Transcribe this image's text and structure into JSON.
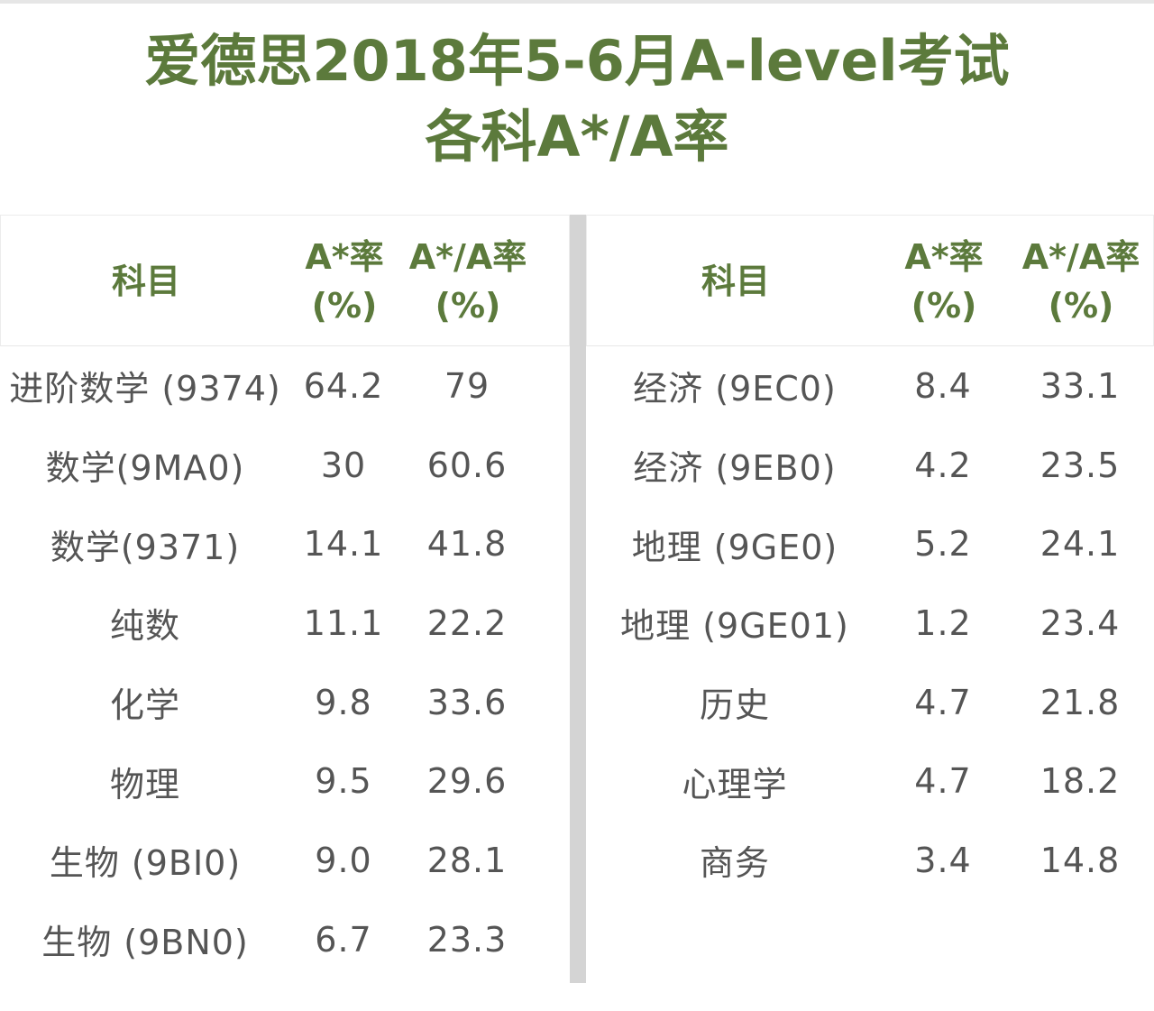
{
  "title": {
    "line1": "爱德思2018年5-6月A-level考试",
    "line2": "各科A*/A率"
  },
  "headers": {
    "subject": "科目",
    "astar_line1": "A*率",
    "astar_line2": "(%)",
    "aa_line1": "A*/A率",
    "aa_line2": "(%)"
  },
  "left_rows": [
    {
      "subject": "进阶数学 (9374)",
      "astar": "64.2",
      "aa": "79"
    },
    {
      "subject": "数学(9MA0)",
      "astar": "30",
      "aa": "60.6"
    },
    {
      "subject": "数学(9371)",
      "astar": "14.1",
      "aa": "41.8"
    },
    {
      "subject": "纯数",
      "astar": "11.1",
      "aa": "22.2"
    },
    {
      "subject": "化学",
      "astar": "9.8",
      "aa": "33.6"
    },
    {
      "subject": "物理",
      "astar": "9.5",
      "aa": "29.6"
    },
    {
      "subject": "生物 (9BI0)",
      "astar": "9.0",
      "aa": "28.1"
    },
    {
      "subject": "生物 (9BN0)",
      "astar": "6.7",
      "aa": "23.3"
    }
  ],
  "right_rows": [
    {
      "subject": "经济 (9EC0)",
      "astar": "8.4",
      "aa": "33.1"
    },
    {
      "subject": "经济 (9EB0)",
      "astar": "4.2",
      "aa": "23.5"
    },
    {
      "subject": "地理 (9GE0)",
      "astar": "5.2",
      "aa": "24.1"
    },
    {
      "subject": "地理 (9GE01)",
      "astar": "1.2",
      "aa": "23.4"
    },
    {
      "subject": "历史",
      "astar": "4.7",
      "aa": "21.8"
    },
    {
      "subject": "心理学",
      "astar": "4.7",
      "aa": "18.2"
    },
    {
      "subject": "商务",
      "astar": "3.4",
      "aa": "14.8"
    }
  ],
  "colors": {
    "accent_green": "#5c7a3c",
    "body_text": "#555555",
    "divider": "#d4d4d4"
  }
}
